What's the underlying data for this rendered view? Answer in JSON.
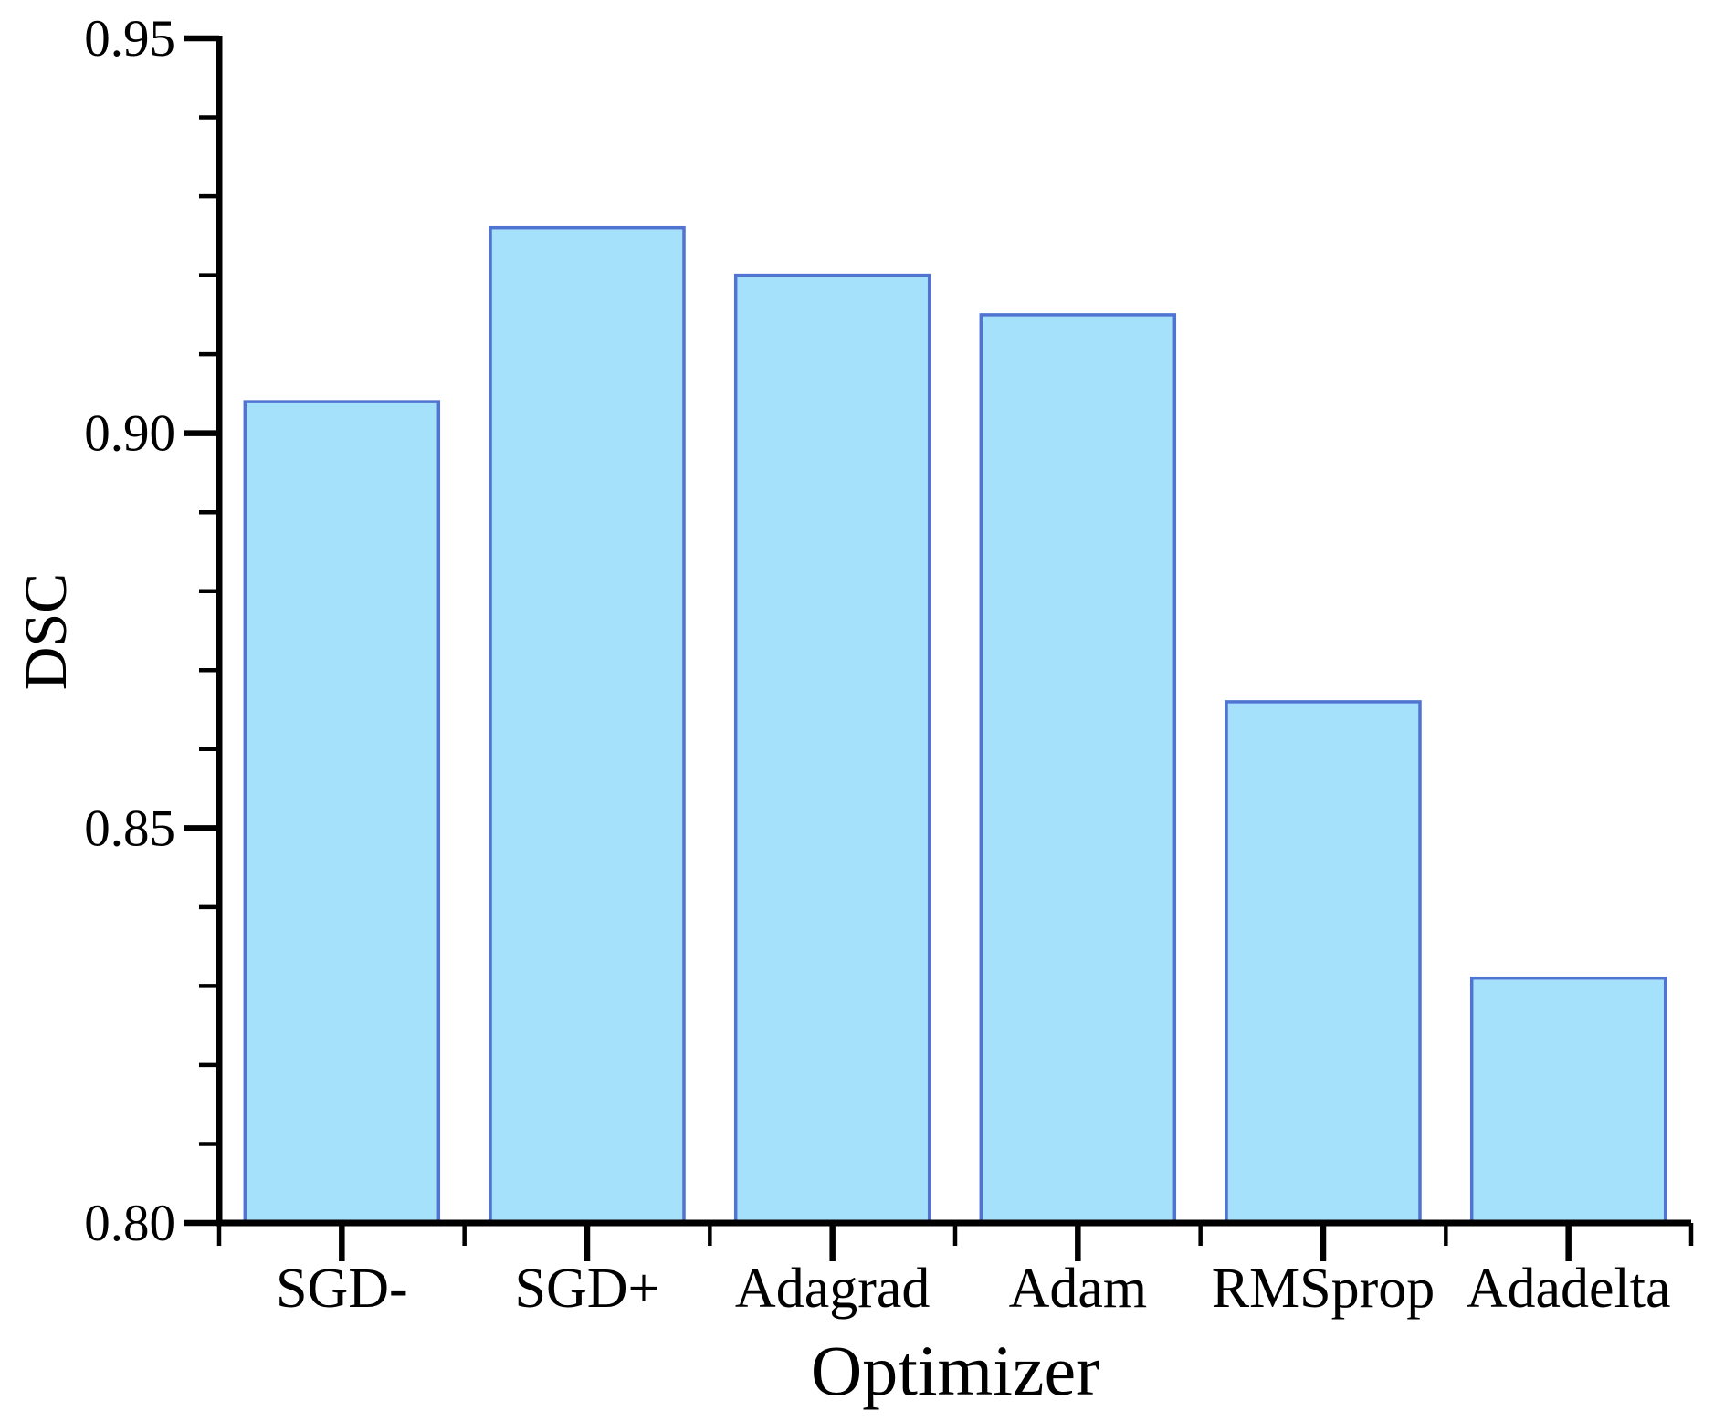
{
  "figure": {
    "background": "#ffffff"
  },
  "chart_data": {
    "type": "bar",
    "title": "",
    "categories": [
      "SGD-",
      "SGD+",
      "Adagrad",
      "Adam",
      "RMSprop",
      "Adadelta"
    ],
    "values": [
      0.904,
      0.926,
      0.92,
      0.915,
      0.866,
      0.831
    ],
    "xlabel": "Optimizer",
    "ylabel": "DSC",
    "ylim": [
      0.8,
      0.95
    ],
    "y_major_ticks": [
      {
        "value": 0.8,
        "label": "0.80"
      },
      {
        "value": 0.85,
        "label": "0.85"
      },
      {
        "value": 0.9,
        "label": "0.90"
      },
      {
        "value": 0.95,
        "label": "0.95"
      }
    ],
    "y_minor_step": 0.01,
    "grid": false,
    "legend": null,
    "colors": {
      "bar_fill": "#A6E1FC",
      "bar_stroke": "#5173D2",
      "axis": "#000000"
    }
  }
}
